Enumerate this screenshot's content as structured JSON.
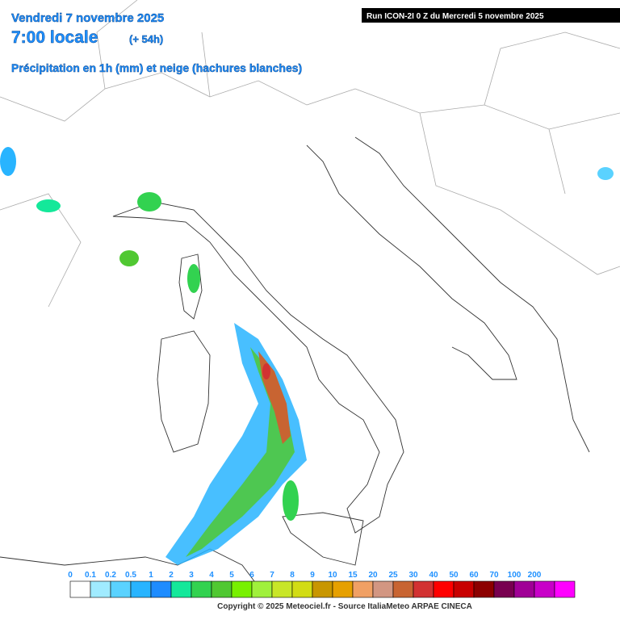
{
  "header": {
    "date": "Vendredi 7 novembre 2025",
    "time": "7:00 locale",
    "lead": "(+ 54h)",
    "field": "Précipitation en 1h (mm) et neige (hachures blanches)",
    "run": "Run ICON-2I 0 Z du Mercredi 5 novembre 2025"
  },
  "legend": {
    "values": [
      0,
      0.1,
      0.2,
      0.5,
      1,
      2,
      3,
      4,
      5,
      6,
      7,
      8,
      9,
      10,
      15,
      20,
      25,
      30,
      40,
      50,
      60,
      70,
      100,
      200
    ],
    "colors": [
      "#ffffff",
      "#a0ebff",
      "#5ad2ff",
      "#28b4ff",
      "#1e8cff",
      "#14e89a",
      "#32d250",
      "#50c832",
      "#78f000",
      "#a0f03c",
      "#c8e628",
      "#d2dc14",
      "#c89600",
      "#e6a000",
      "#f0a064",
      "#d29682",
      "#c86432",
      "#d23232",
      "#ff0000",
      "#c80000",
      "#8c0000",
      "#780050",
      "#a00096",
      "#c800c8",
      "#ff00ff"
    ]
  },
  "footer": {
    "copyright": "Copyright © 2025 Meteociel.fr - Source ItaliaMeteo ARPAE CINECA"
  }
}
